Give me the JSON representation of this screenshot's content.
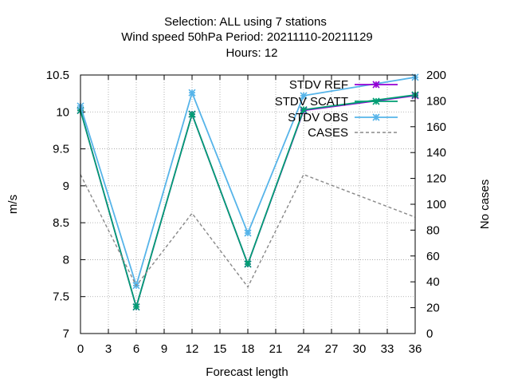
{
  "chart_data": {
    "type": "line",
    "title_lines": [
      "Selection: ALL using     7 stations",
      "Wind speed 50hPa   Period: 20211110-20211129",
      "Hours:  12"
    ],
    "xlabel": "Forecast length",
    "ylabel": "m/s",
    "y2label": "No cases",
    "x": [
      0,
      6,
      12,
      18,
      24,
      36
    ],
    "xlim": [
      0,
      36
    ],
    "xticks": [
      0,
      3,
      6,
      9,
      12,
      15,
      18,
      21,
      24,
      27,
      30,
      33,
      36
    ],
    "ylim": [
      7,
      10.5
    ],
    "yticks": [
      "7",
      "7.5",
      "8",
      "8.5",
      "9",
      "9.5",
      "10",
      "10.5"
    ],
    "y2lim": [
      0,
      200
    ],
    "y2ticks": [
      "0",
      "20",
      "40",
      "60",
      "80",
      "100",
      "120",
      "140",
      "160",
      "180",
      "200"
    ],
    "grid": true,
    "legend_position": "top-right",
    "series": [
      {
        "name": "STDV REF",
        "axis": "y",
        "color": "#9400d3",
        "marker": "star",
        "values": [
          10.02,
          7.36,
          9.97,
          7.94,
          10.02,
          10.22
        ]
      },
      {
        "name": "STDV SCATT",
        "axis": "y",
        "color": "#009e73",
        "marker": "star",
        "values": [
          10.02,
          7.36,
          9.97,
          7.94,
          10.03,
          10.23
        ]
      },
      {
        "name": "STDV OBS",
        "axis": "y",
        "color": "#56b4e9",
        "marker": "star",
        "values": [
          10.08,
          7.65,
          10.26,
          8.36,
          10.22,
          10.47
        ]
      },
      {
        "name": "CASES",
        "axis": "y2",
        "color": "#888888",
        "dashed": true,
        "values": [
          123,
          37,
          93,
          36,
          123,
          90
        ]
      }
    ]
  }
}
